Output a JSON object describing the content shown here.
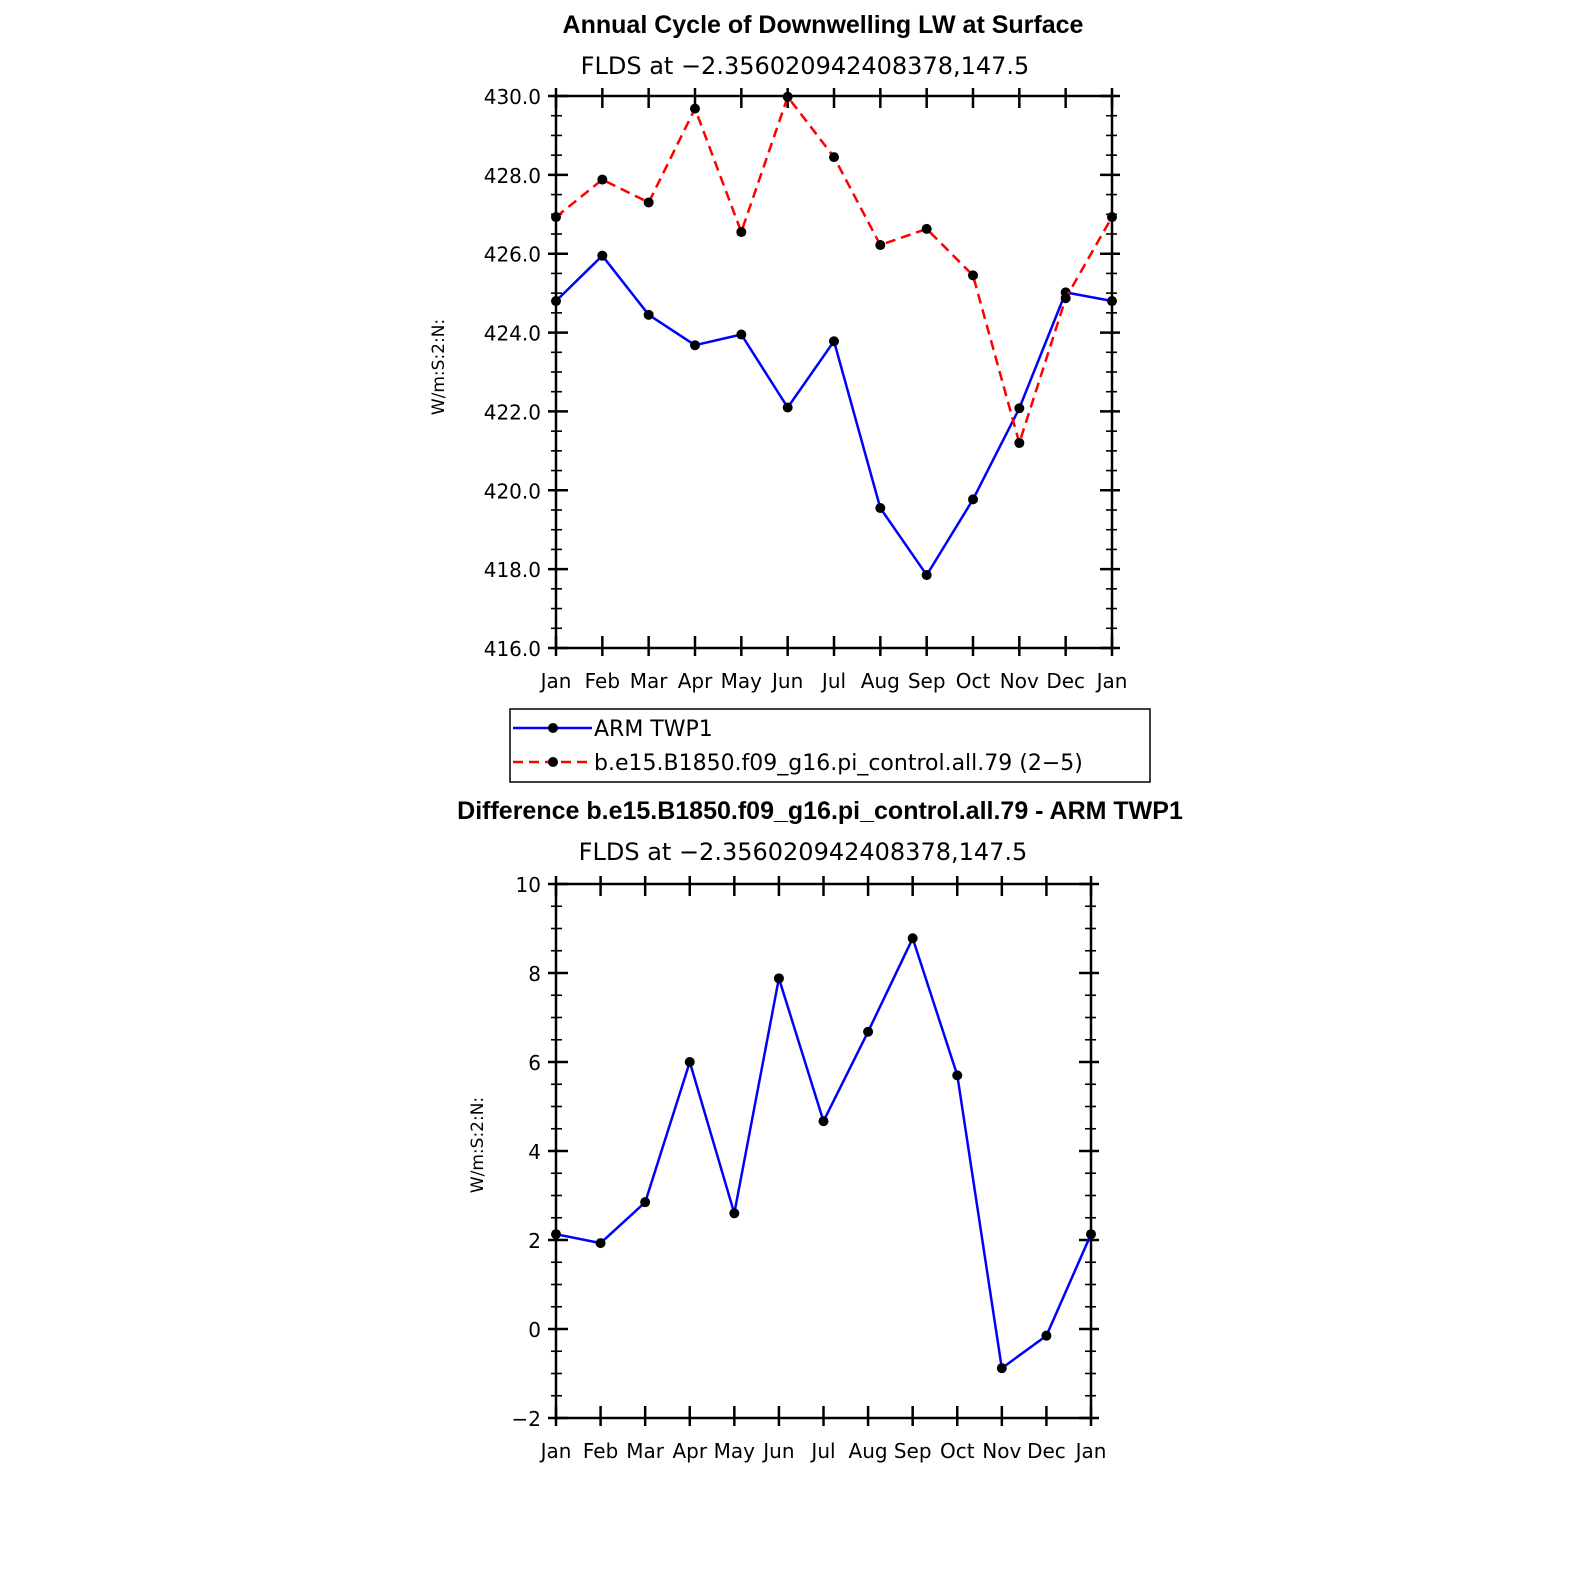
{
  "chart_data": [
    {
      "type": "line",
      "title": "Annual Cycle of Downwelling LW at Surface",
      "subtitle": "FLDS at −2.356020942408378,147.5",
      "ylabel": "W/m:S:2:N:",
      "categories": [
        "Jan",
        "Feb",
        "Mar",
        "Apr",
        "May",
        "Jun",
        "Jul",
        "Aug",
        "Sep",
        "Oct",
        "Nov",
        "Dec",
        "Jan"
      ],
      "ylim": [
        416,
        430
      ],
      "yticks": [
        "416.0",
        "418.0",
        "420.0",
        "422.0",
        "424.0",
        "426.0",
        "428.0",
        "430.0"
      ],
      "series": [
        {
          "name": "ARM  TWP1",
          "color": "#0000ff",
          "dash": "solid",
          "values": [
            424.8,
            425.95,
            424.45,
            423.68,
            423.95,
            422.1,
            423.78,
            419.55,
            417.85,
            419.77,
            422.08,
            425.02,
            424.8
          ]
        },
        {
          "name": "b.e15.B1850.f09_g16.pi_control.all.79 (2−5)",
          "color": "#ff0000",
          "dash": "dashed",
          "values": [
            426.93,
            427.88,
            427.3,
            429.68,
            426.55,
            429.98,
            428.45,
            426.22,
            426.63,
            425.45,
            421.2,
            424.87,
            426.93
          ]
        }
      ],
      "legend_position": "below"
    },
    {
      "type": "line",
      "title": "Difference b.e15.B1850.f09_g16.pi_control.all.79 - ARM TWP1",
      "subtitle": "FLDS at −2.356020942408378,147.5",
      "ylabel": "W/m:S:2:N:",
      "categories": [
        "Jan",
        "Feb",
        "Mar",
        "Apr",
        "May",
        "Jun",
        "Jul",
        "Aug",
        "Sep",
        "Oct",
        "Nov",
        "Dec",
        "Jan"
      ],
      "ylim": [
        -2,
        10
      ],
      "yticks": [
        "−2",
        "0",
        "2",
        "4",
        "6",
        "8",
        "10"
      ],
      "series": [
        {
          "color": "#0000ff",
          "dash": "solid",
          "values": [
            2.13,
            1.93,
            2.85,
            6.0,
            2.6,
            7.88,
            4.67,
            6.68,
            8.78,
            5.7,
            -0.88,
            -0.15,
            2.13
          ]
        }
      ]
    }
  ]
}
